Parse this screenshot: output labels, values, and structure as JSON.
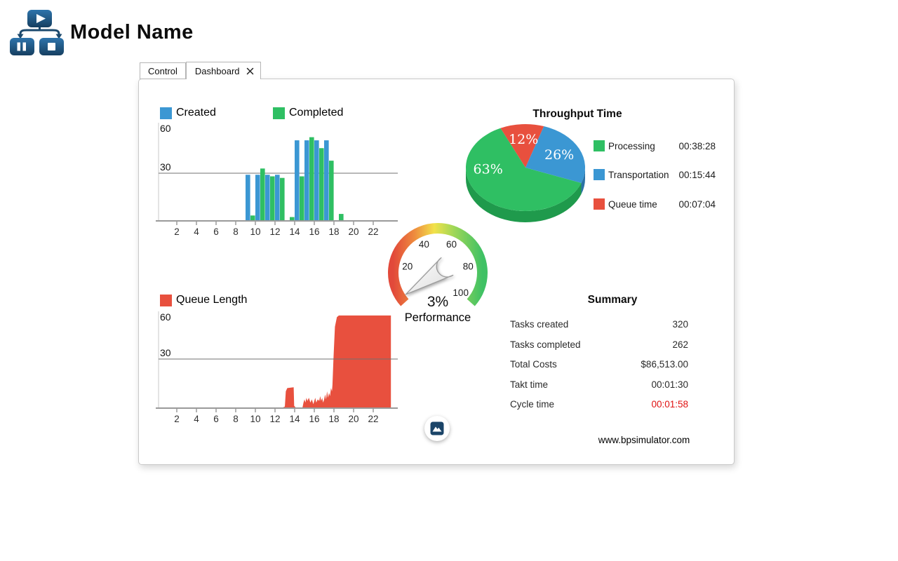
{
  "header": {
    "title": "Model Name"
  },
  "tabs": [
    {
      "label": "Control",
      "active": false
    },
    {
      "label": "Dashboard",
      "active": true,
      "closable": true
    }
  ],
  "colors": {
    "created_blue": "#3b97d3",
    "completed_green": "#2fbf63",
    "queue_red": "#e8503e",
    "logo_navy": "#1b4a73",
    "alert_red": "#e01212"
  },
  "chart_data": [
    {
      "id": "tasks-per-hour",
      "type": "bar",
      "categories": [
        9,
        10,
        11,
        12,
        13,
        14,
        15,
        16,
        17,
        18
      ],
      "series": [
        {
          "name": "Created",
          "color": "#3b97d3",
          "values": [
            29,
            29,
            29,
            29,
            0,
            51,
            51,
            51,
            51,
            0
          ]
        },
        {
          "name": "Completed",
          "color": "#2fbf63",
          "values": [
            3,
            33,
            28,
            27,
            2,
            28,
            53,
            46,
            38,
            4
          ]
        }
      ],
      "xticks": [
        2,
        4,
        6,
        8,
        10,
        12,
        14,
        16,
        18,
        20,
        22
      ],
      "yticks": [
        30,
        60
      ],
      "gridlines": [
        30
      ],
      "xlim": [
        0,
        24
      ],
      "ylim": [
        0,
        64
      ]
    },
    {
      "id": "queue-length",
      "type": "area",
      "name": "Queue Length",
      "color": "#e8503e",
      "points": [
        [
          0,
          0
        ],
        [
          12.8,
          0
        ],
        [
          13.0,
          0.5
        ],
        [
          13.1,
          10
        ],
        [
          13.25,
          12
        ],
        [
          13.9,
          12.5
        ],
        [
          13.95,
          1
        ],
        [
          14.1,
          0
        ],
        [
          14.8,
          0
        ],
        [
          14.9,
          3
        ],
        [
          15.0,
          5
        ],
        [
          15.1,
          3
        ],
        [
          15.2,
          6
        ],
        [
          15.3,
          4
        ],
        [
          15.45,
          6
        ],
        [
          15.6,
          3
        ],
        [
          15.75,
          5
        ],
        [
          15.9,
          2
        ],
        [
          16.0,
          4
        ],
        [
          16.1,
          6
        ],
        [
          16.2,
          3
        ],
        [
          16.35,
          5
        ],
        [
          16.5,
          4
        ],
        [
          16.6,
          7
        ],
        [
          16.7,
          4
        ],
        [
          16.8,
          6
        ],
        [
          16.9,
          3
        ],
        [
          17.0,
          5
        ],
        [
          17.1,
          8
        ],
        [
          17.2,
          5
        ],
        [
          17.3,
          10
        ],
        [
          17.4,
          6
        ],
        [
          17.5,
          9
        ],
        [
          17.6,
          7
        ],
        [
          17.7,
          12
        ],
        [
          17.8,
          10
        ],
        [
          17.85,
          14
        ],
        [
          17.95,
          30
        ],
        [
          18.1,
          50
        ],
        [
          18.3,
          56
        ],
        [
          18.5,
          57
        ],
        [
          23.8,
          57
        ]
      ],
      "xticks": [
        2,
        4,
        6,
        8,
        10,
        12,
        14,
        16,
        18,
        20,
        22
      ],
      "yticks": [
        30,
        60
      ],
      "gridlines": [
        30
      ],
      "xlim": [
        0,
        24
      ],
      "ylim": [
        0,
        64
      ]
    },
    {
      "id": "throughput-time",
      "type": "pie",
      "title": "Throughput Time",
      "start_angle": 72,
      "angular_order": [
        2,
        0,
        1
      ],
      "slices": [
        {
          "label": "Processing",
          "pct": 63,
          "pct_label": "63%",
          "time": "00:38:28",
          "color": "#2fbf63",
          "side": "#1f9a4c",
          "label_angle": 185
        },
        {
          "label": "Transportation",
          "pct": 26,
          "pct_label": "26%",
          "time": "00:15:44",
          "color": "#3b97d3",
          "side": "#2a72a6",
          "label_angle": 26
        },
        {
          "label": "Queue time",
          "pct": 12,
          "pct_label": "12%",
          "time": "00:07:04",
          "color": "#e8503e",
          "side": "#b23a2b",
          "label_angle": 93
        }
      ],
      "legend_position": "right"
    },
    {
      "id": "performance-gauge",
      "type": "gauge",
      "min": 0,
      "max": 100,
      "value_pct": 3,
      "value_label": "3%",
      "label": "Performance",
      "ticks": [
        20,
        40,
        60,
        80,
        100
      ],
      "start_angle": 222,
      "sweep": 264,
      "arc_colors": [
        "#e2493a",
        "#ee8c3e",
        "#f2e24a",
        "#9fd757",
        "#3fc164"
      ]
    }
  ],
  "summary": {
    "title": "Summary",
    "rows": [
      {
        "label": "Tasks created",
        "value": "320"
      },
      {
        "label": "Tasks completed",
        "value": "262"
      },
      {
        "label": "Total Costs",
        "value": "$86,513.00"
      },
      {
        "label": "Takt time",
        "value": "00:01:30"
      },
      {
        "label": "Cycle time",
        "value": "00:01:58",
        "color": "#e01212"
      }
    ]
  },
  "footer": {
    "website": "www.bpsimulator.com"
  },
  "icons": {
    "export": "image-icon",
    "close_tab": "close-icon",
    "logo": [
      "play-icon",
      "pause-icon",
      "stop-icon"
    ]
  }
}
